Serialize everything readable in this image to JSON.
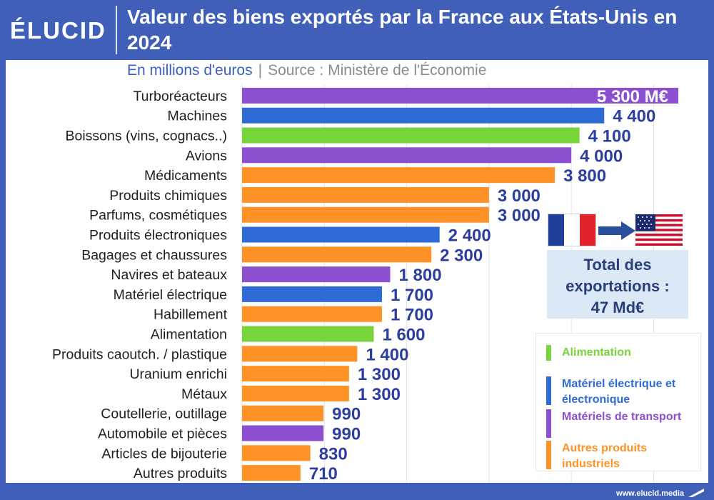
{
  "brand": "ÉLUCID",
  "title": "Valeur des biens exportés par la France aux États-Unis en 2024",
  "subtitle": {
    "unit": "En millions d'euros",
    "separator": "|",
    "source": "Source : Ministère de l'Économie"
  },
  "total": {
    "line1": "Total des",
    "line2": "exportations :",
    "value": "47 Md€"
  },
  "flags": {
    "from": "france-flag-icon",
    "arrow": "arrow-right-icon",
    "to": "usa-flag-icon"
  },
  "colors": {
    "header": "#3f5fb8",
    "Alimentation": "#77d43a",
    "Electronique": "#2f6bd6",
    "Transport": "#8b4fd0",
    "Autres": "#ff9226",
    "value_text": "#2c3e9e"
  },
  "legend": [
    {
      "key": "Alimentation",
      "label": "Alimentation",
      "color": "#77d43a"
    },
    {
      "key": "Electronique",
      "label": "Matériel électrique et électronique",
      "color": "#2f6bd6"
    },
    {
      "key": "Transport",
      "label": "Matériels de transport",
      "color": "#8b4fd0"
    },
    {
      "key": "Autres",
      "label": "Autres produits industriels",
      "color": "#ff9226"
    }
  ],
  "footer": {
    "url": "www.elucid.media"
  },
  "chart_data": {
    "type": "bar",
    "orientation": "horizontal",
    "title": "Valeur des biens exportés par la France aux États-Unis en 2024",
    "unit": "En millions d'euros",
    "categories": [
      "Turboréacteurs",
      "Machines",
      "Boissons (vins, cognacs..)",
      "Avions",
      "Médicaments",
      "Produits chimiques",
      "Parfums, cosmétiques",
      "Produits électroniques",
      "Bagages et chaussures",
      "Navires et bateaux",
      "Matériel électrique",
      "Habillement",
      "Alimentation",
      "Produits caoutch. / plastique",
      "Uranium enrichi",
      "Métaux",
      "Coutellerie, outillage",
      "Automobile et pièces",
      "Articles de bijouterie",
      "Autres produits"
    ],
    "values": [
      5300,
      4400,
      4100,
      4000,
      3800,
      3000,
      3000,
      2400,
      2300,
      1800,
      1700,
      1700,
      1600,
      1400,
      1300,
      1300,
      990,
      990,
      830,
      710
    ],
    "value_labels": [
      "5 300 M€",
      "4 400",
      "4 100",
      "4 000",
      "3 800",
      "3 000",
      "3 000",
      "2 400",
      "2 300",
      "1 800",
      "1 700",
      "1 700",
      "1 600",
      "1 400",
      "1 300",
      "1 300",
      "990",
      "990",
      "830",
      "710"
    ],
    "groups": [
      "Transport",
      "Electronique",
      "Alimentation",
      "Transport",
      "Autres",
      "Autres",
      "Autres",
      "Electronique",
      "Autres",
      "Transport",
      "Electronique",
      "Autres",
      "Alimentation",
      "Autres",
      "Autres",
      "Autres",
      "Autres",
      "Transport",
      "Autres",
      "Autres"
    ],
    "xlim": [
      0,
      5300
    ],
    "grid": true
  }
}
